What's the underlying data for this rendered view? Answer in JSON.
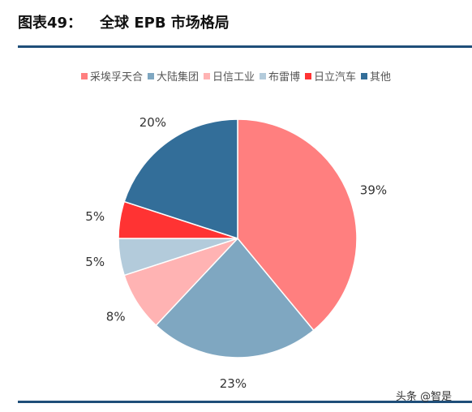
{
  "header": {
    "figure_label": "图表49：",
    "title": "全球 EPB 市场格局"
  },
  "chart_data": {
    "type": "pie",
    "series": [
      {
        "name": "采埃孚天合",
        "value": 39,
        "label": "39%",
        "color": "#ff7f7f"
      },
      {
        "name": "大陆集团",
        "value": 23,
        "label": "23%",
        "color": "#7fa7c1"
      },
      {
        "name": "日信工业",
        "value": 8,
        "label": "8%",
        "color": "#ffb3b3"
      },
      {
        "name": "布雷博",
        "value": 5,
        "label": "5%",
        "color": "#b3cbdb"
      },
      {
        "name": "日立汽车",
        "value": 5,
        "label": "5%",
        "color": "#ff3333"
      },
      {
        "name": "其他",
        "value": 20,
        "label": "20%",
        "color": "#336e99"
      }
    ],
    "legend_position": "top",
    "start_angle_deg": 0,
    "direction": "clockwise"
  },
  "watermark": "头条 @智是"
}
